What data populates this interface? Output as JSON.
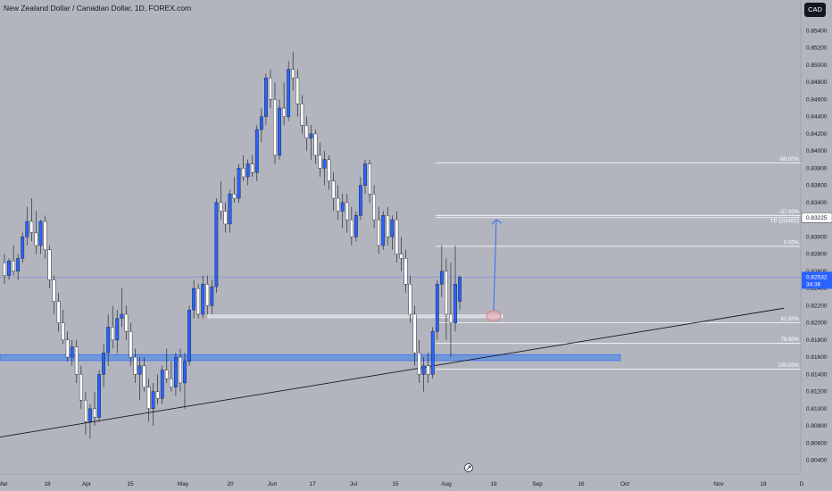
{
  "header": {
    "title": "New Zealand Dollar / Canadian Dollar, 1D, FOREX.com",
    "currency": "CAD"
  },
  "colors": {
    "background": "#b2b5be",
    "up_candle": "#2962ff",
    "down_candle": "#ffffff",
    "zone": "#5b8fe0",
    "fib_line": "#ffffff",
    "trendline": "#131722",
    "price_badge": "#2962ff"
  },
  "chart_data": {
    "type": "candlestick",
    "title": "New Zealand Dollar / Canadian Dollar, 1D, FOREX.com",
    "ylim": [
      0.8025,
      0.8555
    ],
    "y_ticks": [
      "0.85400",
      "0.85200",
      "0.85000",
      "0.84800",
      "0.84600",
      "0.84400",
      "0.84200",
      "0.84000",
      "0.83800",
      "0.83600",
      "0.83400",
      "0.83200",
      "0.83000",
      "0.82800",
      "0.82600",
      "0.82400",
      "0.82200",
      "0.82000",
      "0.81800",
      "0.81600",
      "0.81400",
      "0.81200",
      "0.81000",
      "0.80800",
      "0.80600",
      "0.80400"
    ],
    "x_ticks": [
      "Mar",
      "18",
      "Apr",
      "15",
      "May",
      "20",
      "Jun",
      "17",
      "Jul",
      "15",
      "Aug",
      "19",
      "Sep",
      "16",
      "Oct",
      "Nov",
      "18",
      "D"
    ],
    "current_price": {
      "value": "0.82532",
      "countdown": "34:36"
    },
    "price_labels": [
      {
        "label": "TP DIARIO",
        "value": "0.83225"
      }
    ],
    "fib_levels": [
      {
        "label": "-68.00%",
        "price": 0.8386
      },
      {
        "label": "-37.00%",
        "price": 0.8325
      },
      {
        "label": "0.00%",
        "price": 0.8289
      },
      {
        "label": "61.80%",
        "price": 0.82
      },
      {
        "label": "78.60%",
        "price": 0.8176
      },
      {
        "label": "100.00%",
        "price": 0.8146
      }
    ],
    "support_zone": {
      "from_price": 0.8156,
      "to_price": 0.8163
    },
    "resistance_zone": {
      "from_price": 0.8206,
      "to_price": 0.8209
    },
    "trendline": {
      "start_price": 0.8067,
      "end_price": 0.8217
    },
    "projection": {
      "from_price": 0.821,
      "to_price": 0.832
    },
    "candles": [
      {
        "o": 0.827,
        "h": 0.828,
        "l": 0.8245,
        "c": 0.8255
      },
      {
        "o": 0.8255,
        "h": 0.8275,
        "l": 0.825,
        "c": 0.8272
      },
      {
        "o": 0.8272,
        "h": 0.829,
        "l": 0.8255,
        "c": 0.826
      },
      {
        "o": 0.826,
        "h": 0.828,
        "l": 0.825,
        "c": 0.8275
      },
      {
        "o": 0.8275,
        "h": 0.8305,
        "l": 0.827,
        "c": 0.83
      },
      {
        "o": 0.83,
        "h": 0.8335,
        "l": 0.829,
        "c": 0.8318
      },
      {
        "o": 0.8318,
        "h": 0.8345,
        "l": 0.8295,
        "c": 0.8305
      },
      {
        "o": 0.8305,
        "h": 0.833,
        "l": 0.828,
        "c": 0.829
      },
      {
        "o": 0.829,
        "h": 0.832,
        "l": 0.828,
        "c": 0.8318
      },
      {
        "o": 0.8318,
        "h": 0.8325,
        "l": 0.8275,
        "c": 0.8285
      },
      {
        "o": 0.8285,
        "h": 0.829,
        "l": 0.824,
        "c": 0.825
      },
      {
        "o": 0.825,
        "h": 0.8255,
        "l": 0.821,
        "c": 0.8225
      },
      {
        "o": 0.8225,
        "h": 0.8235,
        "l": 0.819,
        "c": 0.82
      },
      {
        "o": 0.82,
        "h": 0.8215,
        "l": 0.8175,
        "c": 0.818
      },
      {
        "o": 0.818,
        "h": 0.819,
        "l": 0.8155,
        "c": 0.816
      },
      {
        "o": 0.816,
        "h": 0.818,
        "l": 0.815,
        "c": 0.8172
      },
      {
        "o": 0.8172,
        "h": 0.818,
        "l": 0.813,
        "c": 0.814
      },
      {
        "o": 0.814,
        "h": 0.815,
        "l": 0.81,
        "c": 0.811
      },
      {
        "o": 0.811,
        "h": 0.812,
        "l": 0.807,
        "c": 0.8085
      },
      {
        "o": 0.8085,
        "h": 0.8105,
        "l": 0.8065,
        "c": 0.81
      },
      {
        "o": 0.81,
        "h": 0.812,
        "l": 0.808,
        "c": 0.809
      },
      {
        "o": 0.809,
        "h": 0.8145,
        "l": 0.8085,
        "c": 0.814
      },
      {
        "o": 0.814,
        "h": 0.8175,
        "l": 0.8125,
        "c": 0.8165
      },
      {
        "o": 0.8165,
        "h": 0.821,
        "l": 0.815,
        "c": 0.8195
      },
      {
        "o": 0.8195,
        "h": 0.822,
        "l": 0.817,
        "c": 0.818
      },
      {
        "o": 0.818,
        "h": 0.8215,
        "l": 0.8165,
        "c": 0.8205
      },
      {
        "o": 0.8205,
        "h": 0.824,
        "l": 0.8195,
        "c": 0.821
      },
      {
        "o": 0.821,
        "h": 0.822,
        "l": 0.818,
        "c": 0.819
      },
      {
        "o": 0.819,
        "h": 0.82,
        "l": 0.815,
        "c": 0.816
      },
      {
        "o": 0.816,
        "h": 0.817,
        "l": 0.813,
        "c": 0.814
      },
      {
        "o": 0.814,
        "h": 0.816,
        "l": 0.811,
        "c": 0.815
      },
      {
        "o": 0.815,
        "h": 0.816,
        "l": 0.812,
        "c": 0.8125
      },
      {
        "o": 0.8125,
        "h": 0.8135,
        "l": 0.8085,
        "c": 0.81
      },
      {
        "o": 0.81,
        "h": 0.813,
        "l": 0.808,
        "c": 0.812
      },
      {
        "o": 0.812,
        "h": 0.814,
        "l": 0.8105,
        "c": 0.8112
      },
      {
        "o": 0.8112,
        "h": 0.815,
        "l": 0.8105,
        "c": 0.8145
      },
      {
        "o": 0.8145,
        "h": 0.817,
        "l": 0.813,
        "c": 0.8135
      },
      {
        "o": 0.8135,
        "h": 0.8155,
        "l": 0.812,
        "c": 0.8125
      },
      {
        "o": 0.8125,
        "h": 0.8165,
        "l": 0.8115,
        "c": 0.816
      },
      {
        "o": 0.816,
        "h": 0.817,
        "l": 0.812,
        "c": 0.813
      },
      {
        "o": 0.813,
        "h": 0.8165,
        "l": 0.81,
        "c": 0.8155
      },
      {
        "o": 0.8155,
        "h": 0.822,
        "l": 0.815,
        "c": 0.8215
      },
      {
        "o": 0.8215,
        "h": 0.825,
        "l": 0.8205,
        "c": 0.824
      },
      {
        "o": 0.824,
        "h": 0.8245,
        "l": 0.8205,
        "c": 0.821
      },
      {
        "o": 0.821,
        "h": 0.8255,
        "l": 0.8205,
        "c": 0.8245
      },
      {
        "o": 0.8245,
        "h": 0.8255,
        "l": 0.821,
        "c": 0.822
      },
      {
        "o": 0.822,
        "h": 0.825,
        "l": 0.821,
        "c": 0.8242
      },
      {
        "o": 0.8242,
        "h": 0.8345,
        "l": 0.8235,
        "c": 0.834
      },
      {
        "o": 0.834,
        "h": 0.8365,
        "l": 0.832,
        "c": 0.833
      },
      {
        "o": 0.833,
        "h": 0.834,
        "l": 0.8305,
        "c": 0.8315
      },
      {
        "o": 0.8315,
        "h": 0.8355,
        "l": 0.8305,
        "c": 0.835
      },
      {
        "o": 0.835,
        "h": 0.837,
        "l": 0.834,
        "c": 0.8345
      },
      {
        "o": 0.8345,
        "h": 0.8385,
        "l": 0.834,
        "c": 0.838
      },
      {
        "o": 0.838,
        "h": 0.8395,
        "l": 0.8365,
        "c": 0.837
      },
      {
        "o": 0.837,
        "h": 0.839,
        "l": 0.836,
        "c": 0.8385
      },
      {
        "o": 0.8385,
        "h": 0.8395,
        "l": 0.837,
        "c": 0.8375
      },
      {
        "o": 0.8375,
        "h": 0.843,
        "l": 0.8365,
        "c": 0.8425
      },
      {
        "o": 0.8425,
        "h": 0.845,
        "l": 0.841,
        "c": 0.844
      },
      {
        "o": 0.844,
        "h": 0.849,
        "l": 0.843,
        "c": 0.8485
      },
      {
        "o": 0.8485,
        "h": 0.8495,
        "l": 0.845,
        "c": 0.846
      },
      {
        "o": 0.846,
        "h": 0.848,
        "l": 0.8385,
        "c": 0.8395
      },
      {
        "o": 0.8395,
        "h": 0.846,
        "l": 0.839,
        "c": 0.845
      },
      {
        "o": 0.845,
        "h": 0.848,
        "l": 0.843,
        "c": 0.844
      },
      {
        "o": 0.844,
        "h": 0.8505,
        "l": 0.8435,
        "c": 0.8495
      },
      {
        "o": 0.8495,
        "h": 0.8515,
        "l": 0.847,
        "c": 0.8485
      },
      {
        "o": 0.8485,
        "h": 0.8495,
        "l": 0.844,
        "c": 0.8455
      },
      {
        "o": 0.8455,
        "h": 0.8465,
        "l": 0.842,
        "c": 0.843
      },
      {
        "o": 0.843,
        "h": 0.844,
        "l": 0.84,
        "c": 0.8415
      },
      {
        "o": 0.8415,
        "h": 0.843,
        "l": 0.839,
        "c": 0.842
      },
      {
        "o": 0.842,
        "h": 0.8425,
        "l": 0.8385,
        "c": 0.8395
      },
      {
        "o": 0.8395,
        "h": 0.841,
        "l": 0.837,
        "c": 0.838
      },
      {
        "o": 0.838,
        "h": 0.84,
        "l": 0.836,
        "c": 0.839
      },
      {
        "o": 0.839,
        "h": 0.8395,
        "l": 0.8355,
        "c": 0.8365
      },
      {
        "o": 0.8365,
        "h": 0.8375,
        "l": 0.833,
        "c": 0.8345
      },
      {
        "o": 0.8345,
        "h": 0.836,
        "l": 0.832,
        "c": 0.833
      },
      {
        "o": 0.833,
        "h": 0.835,
        "l": 0.831,
        "c": 0.834
      },
      {
        "o": 0.834,
        "h": 0.835,
        "l": 0.8305,
        "c": 0.832
      },
      {
        "o": 0.832,
        "h": 0.8335,
        "l": 0.829,
        "c": 0.83
      },
      {
        "o": 0.83,
        "h": 0.833,
        "l": 0.8295,
        "c": 0.8325
      },
      {
        "o": 0.8325,
        "h": 0.837,
        "l": 0.832,
        "c": 0.836
      },
      {
        "o": 0.836,
        "h": 0.839,
        "l": 0.835,
        "c": 0.8385
      },
      {
        "o": 0.8385,
        "h": 0.839,
        "l": 0.834,
        "c": 0.835
      },
      {
        "o": 0.835,
        "h": 0.836,
        "l": 0.831,
        "c": 0.832
      },
      {
        "o": 0.832,
        "h": 0.8335,
        "l": 0.828,
        "c": 0.829
      },
      {
        "o": 0.829,
        "h": 0.833,
        "l": 0.8285,
        "c": 0.8325
      },
      {
        "o": 0.8325,
        "h": 0.8335,
        "l": 0.829,
        "c": 0.83
      },
      {
        "o": 0.83,
        "h": 0.8325,
        "l": 0.8285,
        "c": 0.832
      },
      {
        "o": 0.832,
        "h": 0.833,
        "l": 0.827,
        "c": 0.828
      },
      {
        "o": 0.828,
        "h": 0.83,
        "l": 0.826,
        "c": 0.8275
      },
      {
        "o": 0.8275,
        "h": 0.8285,
        "l": 0.8235,
        "c": 0.8245
      },
      {
        "o": 0.8245,
        "h": 0.8255,
        "l": 0.82,
        "c": 0.821
      },
      {
        "o": 0.821,
        "h": 0.822,
        "l": 0.815,
        "c": 0.8165
      },
      {
        "o": 0.8165,
        "h": 0.818,
        "l": 0.813,
        "c": 0.814
      },
      {
        "o": 0.814,
        "h": 0.816,
        "l": 0.812,
        "c": 0.815
      },
      {
        "o": 0.815,
        "h": 0.8165,
        "l": 0.813,
        "c": 0.814
      },
      {
        "o": 0.814,
        "h": 0.8195,
        "l": 0.8135,
        "c": 0.819
      },
      {
        "o": 0.819,
        "h": 0.825,
        "l": 0.818,
        "c": 0.8245
      },
      {
        "o": 0.8245,
        "h": 0.829,
        "l": 0.823,
        "c": 0.826
      },
      {
        "o": 0.826,
        "h": 0.8275,
        "l": 0.818,
        "c": 0.821
      },
      {
        "o": 0.821,
        "h": 0.827,
        "l": 0.816,
        "c": 0.82
      },
      {
        "o": 0.82,
        "h": 0.829,
        "l": 0.819,
        "c": 0.8245
      },
      {
        "o": 0.8225,
        "h": 0.8255,
        "l": 0.8215,
        "c": 0.8253
      }
    ]
  }
}
